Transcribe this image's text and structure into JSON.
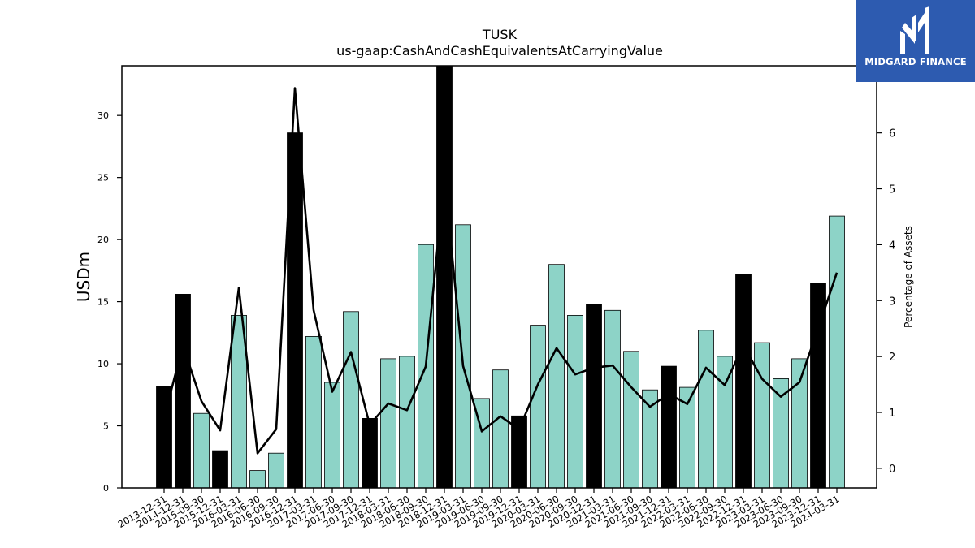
{
  "chart_data": {
    "type": "bar+line",
    "title": "TUSK",
    "subtitle": "us-gaap:CashAndCashEquivalentsAtCarryingValue",
    "ylabel": "USDm",
    "y2label": "Percentage of Assets",
    "ylim": [
      0,
      34
    ],
    "y2lim": [
      -0.35,
      7.2
    ],
    "yticks": [
      0,
      5,
      10,
      15,
      20,
      25,
      30
    ],
    "y2ticks": [
      0,
      1,
      2,
      3,
      4,
      5,
      6
    ],
    "grid": false,
    "categories": [
      "2013-12-31",
      "2014-12-31",
      "2015-09-30",
      "2015-12-31",
      "2016-03-31",
      "2016-06-30",
      "2016-09-30",
      "2016-12-31",
      "2017-03-31",
      "2017-06-30",
      "2017-09-30",
      "2017-12-31",
      "2018-03-31",
      "2018-06-30",
      "2018-09-30",
      "2018-12-31",
      "2019-03-31",
      "2019-06-30",
      "2019-09-30",
      "2019-12-31",
      "2020-03-31",
      "2020-06-30",
      "2020-09-30",
      "2020-12-31",
      "2021-03-31",
      "2021-06-30",
      "2021-09-30",
      "2021-12-31",
      "2022-03-31",
      "2022-06-30",
      "2022-09-30",
      "2022-12-31",
      "2023-03-31",
      "2023-06-30",
      "2023-09-30",
      "2023-12-31",
      "2024-03-31"
    ],
    "bar_values": [
      8.2,
      15.6,
      6.0,
      3.0,
      13.9,
      1.4,
      2.8,
      28.6,
      12.2,
      8.5,
      14.2,
      5.6,
      10.4,
      10.6,
      19.6,
      34.2,
      21.2,
      7.2,
      9.5,
      5.8,
      13.1,
      18.0,
      13.9,
      14.8,
      14.3,
      11.0,
      7.9,
      9.8,
      8.1,
      12.7,
      10.6,
      17.2,
      11.7,
      8.8,
      10.4,
      16.5,
      21.9
    ],
    "bar_highlight": [
      true,
      true,
      false,
      true,
      false,
      false,
      false,
      true,
      false,
      false,
      false,
      true,
      false,
      false,
      false,
      true,
      false,
      false,
      false,
      true,
      false,
      false,
      false,
      true,
      false,
      false,
      false,
      true,
      false,
      false,
      false,
      true,
      false,
      false,
      false,
      true,
      false
    ],
    "line_values": [
      0.9,
      2.2,
      1.2,
      0.68,
      3.23,
      0.27,
      0.7,
      6.8,
      2.83,
      1.37,
      2.08,
      0.78,
      1.16,
      1.04,
      1.82,
      5.2,
      1.83,
      0.66,
      0.93,
      0.7,
      1.5,
      2.15,
      1.68,
      1.8,
      1.84,
      1.45,
      1.1,
      1.33,
      1.15,
      1.8,
      1.49,
      2.2,
      1.6,
      1.28,
      1.54,
      2.5,
      3.5
    ],
    "colors": {
      "bar": "#8dd3c7",
      "bar_highlight": "#000000",
      "line": "#000000"
    }
  },
  "logo": {
    "text": "MIDGARD FINANCE",
    "background": "#2d5bb0"
  }
}
